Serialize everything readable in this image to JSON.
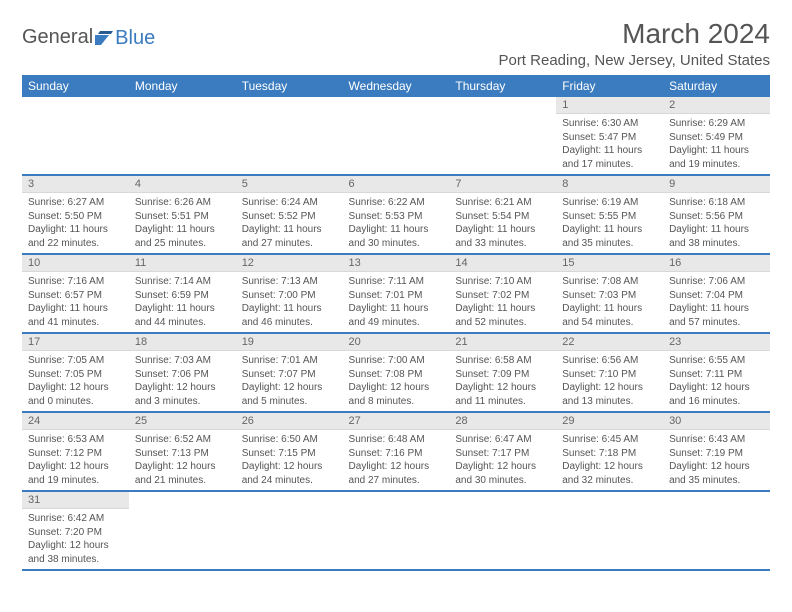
{
  "logo": {
    "text1": "General",
    "text2": "Blue"
  },
  "title": "March 2024",
  "location": "Port Reading, New Jersey, United States",
  "colors": {
    "header_bg": "#3b7bbf",
    "header_text": "#ffffff",
    "daynum_bg": "#e8e8e8",
    "text": "#555555"
  },
  "dayHeaders": [
    "Sunday",
    "Monday",
    "Tuesday",
    "Wednesday",
    "Thursday",
    "Friday",
    "Saturday"
  ],
  "weeks": [
    [
      null,
      null,
      null,
      null,
      null,
      {
        "n": "1",
        "sr": "Sunrise: 6:30 AM",
        "ss": "Sunset: 5:47 PM",
        "dl": "Daylight: 11 hours and 17 minutes."
      },
      {
        "n": "2",
        "sr": "Sunrise: 6:29 AM",
        "ss": "Sunset: 5:49 PM",
        "dl": "Daylight: 11 hours and 19 minutes."
      }
    ],
    [
      {
        "n": "3",
        "sr": "Sunrise: 6:27 AM",
        "ss": "Sunset: 5:50 PM",
        "dl": "Daylight: 11 hours and 22 minutes."
      },
      {
        "n": "4",
        "sr": "Sunrise: 6:26 AM",
        "ss": "Sunset: 5:51 PM",
        "dl": "Daylight: 11 hours and 25 minutes."
      },
      {
        "n": "5",
        "sr": "Sunrise: 6:24 AM",
        "ss": "Sunset: 5:52 PM",
        "dl": "Daylight: 11 hours and 27 minutes."
      },
      {
        "n": "6",
        "sr": "Sunrise: 6:22 AM",
        "ss": "Sunset: 5:53 PM",
        "dl": "Daylight: 11 hours and 30 minutes."
      },
      {
        "n": "7",
        "sr": "Sunrise: 6:21 AM",
        "ss": "Sunset: 5:54 PM",
        "dl": "Daylight: 11 hours and 33 minutes."
      },
      {
        "n": "8",
        "sr": "Sunrise: 6:19 AM",
        "ss": "Sunset: 5:55 PM",
        "dl": "Daylight: 11 hours and 35 minutes."
      },
      {
        "n": "9",
        "sr": "Sunrise: 6:18 AM",
        "ss": "Sunset: 5:56 PM",
        "dl": "Daylight: 11 hours and 38 minutes."
      }
    ],
    [
      {
        "n": "10",
        "sr": "Sunrise: 7:16 AM",
        "ss": "Sunset: 6:57 PM",
        "dl": "Daylight: 11 hours and 41 minutes."
      },
      {
        "n": "11",
        "sr": "Sunrise: 7:14 AM",
        "ss": "Sunset: 6:59 PM",
        "dl": "Daylight: 11 hours and 44 minutes."
      },
      {
        "n": "12",
        "sr": "Sunrise: 7:13 AM",
        "ss": "Sunset: 7:00 PM",
        "dl": "Daylight: 11 hours and 46 minutes."
      },
      {
        "n": "13",
        "sr": "Sunrise: 7:11 AM",
        "ss": "Sunset: 7:01 PM",
        "dl": "Daylight: 11 hours and 49 minutes."
      },
      {
        "n": "14",
        "sr": "Sunrise: 7:10 AM",
        "ss": "Sunset: 7:02 PM",
        "dl": "Daylight: 11 hours and 52 minutes."
      },
      {
        "n": "15",
        "sr": "Sunrise: 7:08 AM",
        "ss": "Sunset: 7:03 PM",
        "dl": "Daylight: 11 hours and 54 minutes."
      },
      {
        "n": "16",
        "sr": "Sunrise: 7:06 AM",
        "ss": "Sunset: 7:04 PM",
        "dl": "Daylight: 11 hours and 57 minutes."
      }
    ],
    [
      {
        "n": "17",
        "sr": "Sunrise: 7:05 AM",
        "ss": "Sunset: 7:05 PM",
        "dl": "Daylight: 12 hours and 0 minutes."
      },
      {
        "n": "18",
        "sr": "Sunrise: 7:03 AM",
        "ss": "Sunset: 7:06 PM",
        "dl": "Daylight: 12 hours and 3 minutes."
      },
      {
        "n": "19",
        "sr": "Sunrise: 7:01 AM",
        "ss": "Sunset: 7:07 PM",
        "dl": "Daylight: 12 hours and 5 minutes."
      },
      {
        "n": "20",
        "sr": "Sunrise: 7:00 AM",
        "ss": "Sunset: 7:08 PM",
        "dl": "Daylight: 12 hours and 8 minutes."
      },
      {
        "n": "21",
        "sr": "Sunrise: 6:58 AM",
        "ss": "Sunset: 7:09 PM",
        "dl": "Daylight: 12 hours and 11 minutes."
      },
      {
        "n": "22",
        "sr": "Sunrise: 6:56 AM",
        "ss": "Sunset: 7:10 PM",
        "dl": "Daylight: 12 hours and 13 minutes."
      },
      {
        "n": "23",
        "sr": "Sunrise: 6:55 AM",
        "ss": "Sunset: 7:11 PM",
        "dl": "Daylight: 12 hours and 16 minutes."
      }
    ],
    [
      {
        "n": "24",
        "sr": "Sunrise: 6:53 AM",
        "ss": "Sunset: 7:12 PM",
        "dl": "Daylight: 12 hours and 19 minutes."
      },
      {
        "n": "25",
        "sr": "Sunrise: 6:52 AM",
        "ss": "Sunset: 7:13 PM",
        "dl": "Daylight: 12 hours and 21 minutes."
      },
      {
        "n": "26",
        "sr": "Sunrise: 6:50 AM",
        "ss": "Sunset: 7:15 PM",
        "dl": "Daylight: 12 hours and 24 minutes."
      },
      {
        "n": "27",
        "sr": "Sunrise: 6:48 AM",
        "ss": "Sunset: 7:16 PM",
        "dl": "Daylight: 12 hours and 27 minutes."
      },
      {
        "n": "28",
        "sr": "Sunrise: 6:47 AM",
        "ss": "Sunset: 7:17 PM",
        "dl": "Daylight: 12 hours and 30 minutes."
      },
      {
        "n": "29",
        "sr": "Sunrise: 6:45 AM",
        "ss": "Sunset: 7:18 PM",
        "dl": "Daylight: 12 hours and 32 minutes."
      },
      {
        "n": "30",
        "sr": "Sunrise: 6:43 AM",
        "ss": "Sunset: 7:19 PM",
        "dl": "Daylight: 12 hours and 35 minutes."
      }
    ],
    [
      {
        "n": "31",
        "sr": "Sunrise: 6:42 AM",
        "ss": "Sunset: 7:20 PM",
        "dl": "Daylight: 12 hours and 38 minutes."
      },
      null,
      null,
      null,
      null,
      null,
      null
    ]
  ]
}
